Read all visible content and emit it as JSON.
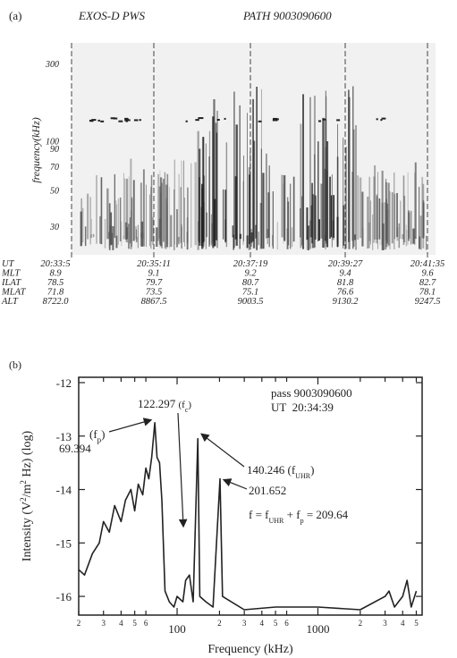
{
  "chart_data": [
    {
      "type": "spectrogram",
      "panel": "(a)",
      "title": "EXOS-D PWS",
      "subtitle": "PATH 9003090600",
      "ylabel": "frequency(kHz)",
      "log_y": true,
      "ylim": [
        20,
        400
      ],
      "yticks": [
        300,
        100,
        90,
        70,
        50,
        30
      ],
      "table": {
        "rows": [
          {
            "name": "UT",
            "values": [
              "20:33:5",
              "20:35:11",
              "20:37:19",
              "20:39:27",
              "20:41:35"
            ]
          },
          {
            "name": "MLT",
            "values": [
              "8.9",
              "9.1",
              "9.2",
              "9.4",
              "9.6"
            ]
          },
          {
            "name": "ILAT",
            "values": [
              "78.5",
              "79.7",
              "80.7",
              "81.8",
              "82.7"
            ]
          },
          {
            "name": "MLAT",
            "values": [
              "71.8",
              "73.5",
              "75.1",
              "76.6",
              "78.1"
            ]
          },
          {
            "name": "ALT",
            "values": [
              "8722.0",
              "8867.5",
              "9003.5",
              "9130.2",
              "9247.5"
            ]
          }
        ]
      }
    },
    {
      "type": "line",
      "panel": "(b)",
      "xlabel": "Frequency (kHz)",
      "ylabel": [
        "Intensity (V",
        "2",
        "/m",
        "2",
        " Hz) (log)"
      ],
      "log_x": true,
      "xlim": [
        20,
        5500
      ],
      "ylim": [
        -16.35,
        -11.9
      ],
      "xticks": [
        {
          "value": 20,
          "label": "2"
        },
        {
          "value": 30,
          "label": "3"
        },
        {
          "value": 40,
          "label": "4"
        },
        {
          "value": 50,
          "label": "5"
        },
        {
          "value": 60,
          "label": "6"
        },
        100,
        {
          "value": 200,
          "label": "2"
        },
        {
          "value": 300,
          "label": "3"
        },
        {
          "value": 400,
          "label": "4"
        },
        {
          "value": 500,
          "label": "5"
        },
        {
          "value": 600,
          "label": "6"
        },
        1000,
        {
          "value": 2000,
          "label": "2"
        },
        {
          "value": 3000,
          "label": "3"
        },
        {
          "value": 4000,
          "label": "4"
        },
        {
          "value": 5000,
          "label": "5"
        }
      ],
      "yticks": [
        -12,
        -13,
        -14,
        -15,
        -16
      ],
      "color": "#222222",
      "x": [
        20,
        22,
        25,
        28,
        30,
        33,
        36,
        40,
        43,
        47,
        50,
        53,
        57,
        60,
        63,
        66,
        69.394,
        72,
        75,
        78,
        82,
        88,
        95,
        100,
        110,
        115,
        122.297,
        130,
        140.246,
        145,
        160,
        180,
        201.652,
        210,
        300,
        500,
        1000,
        2000,
        3000,
        3200,
        3500,
        4000,
        4300,
        4600,
        5000
      ],
      "values": [
        -15.5,
        -15.6,
        -15.2,
        -15.0,
        -14.6,
        -14.8,
        -14.3,
        -14.6,
        -14.2,
        -14.0,
        -14.4,
        -13.9,
        -14.1,
        -13.6,
        -13.8,
        -13.4,
        -12.75,
        -13.4,
        -13.5,
        -14.2,
        -15.9,
        -16.1,
        -16.2,
        -16.0,
        -16.1,
        -15.7,
        -15.6,
        -16.1,
        -13.05,
        -16.0,
        -16.1,
        -16.2,
        -13.8,
        -16.0,
        -16.25,
        -16.2,
        -16.2,
        -16.25,
        -16.0,
        -15.9,
        -16.2,
        -16.0,
        -15.7,
        -16.2,
        -15.9
      ],
      "annotations": {
        "fp": [
          "(f",
          "p",
          ")"
        ],
        "fp_value": "69.394",
        "fc": [
          "122.297 ",
          "(f",
          "c",
          ")"
        ],
        "pass": "pass 9003090600",
        "ut": "UT  20:34:39",
        "fuhr": [
          "140.246 (f",
          "UHR",
          ")"
        ],
        "f2": "201.652",
        "sum": [
          "f = f",
          "UHR",
          " + f",
          "p",
          " = 209.64"
        ]
      }
    }
  ]
}
